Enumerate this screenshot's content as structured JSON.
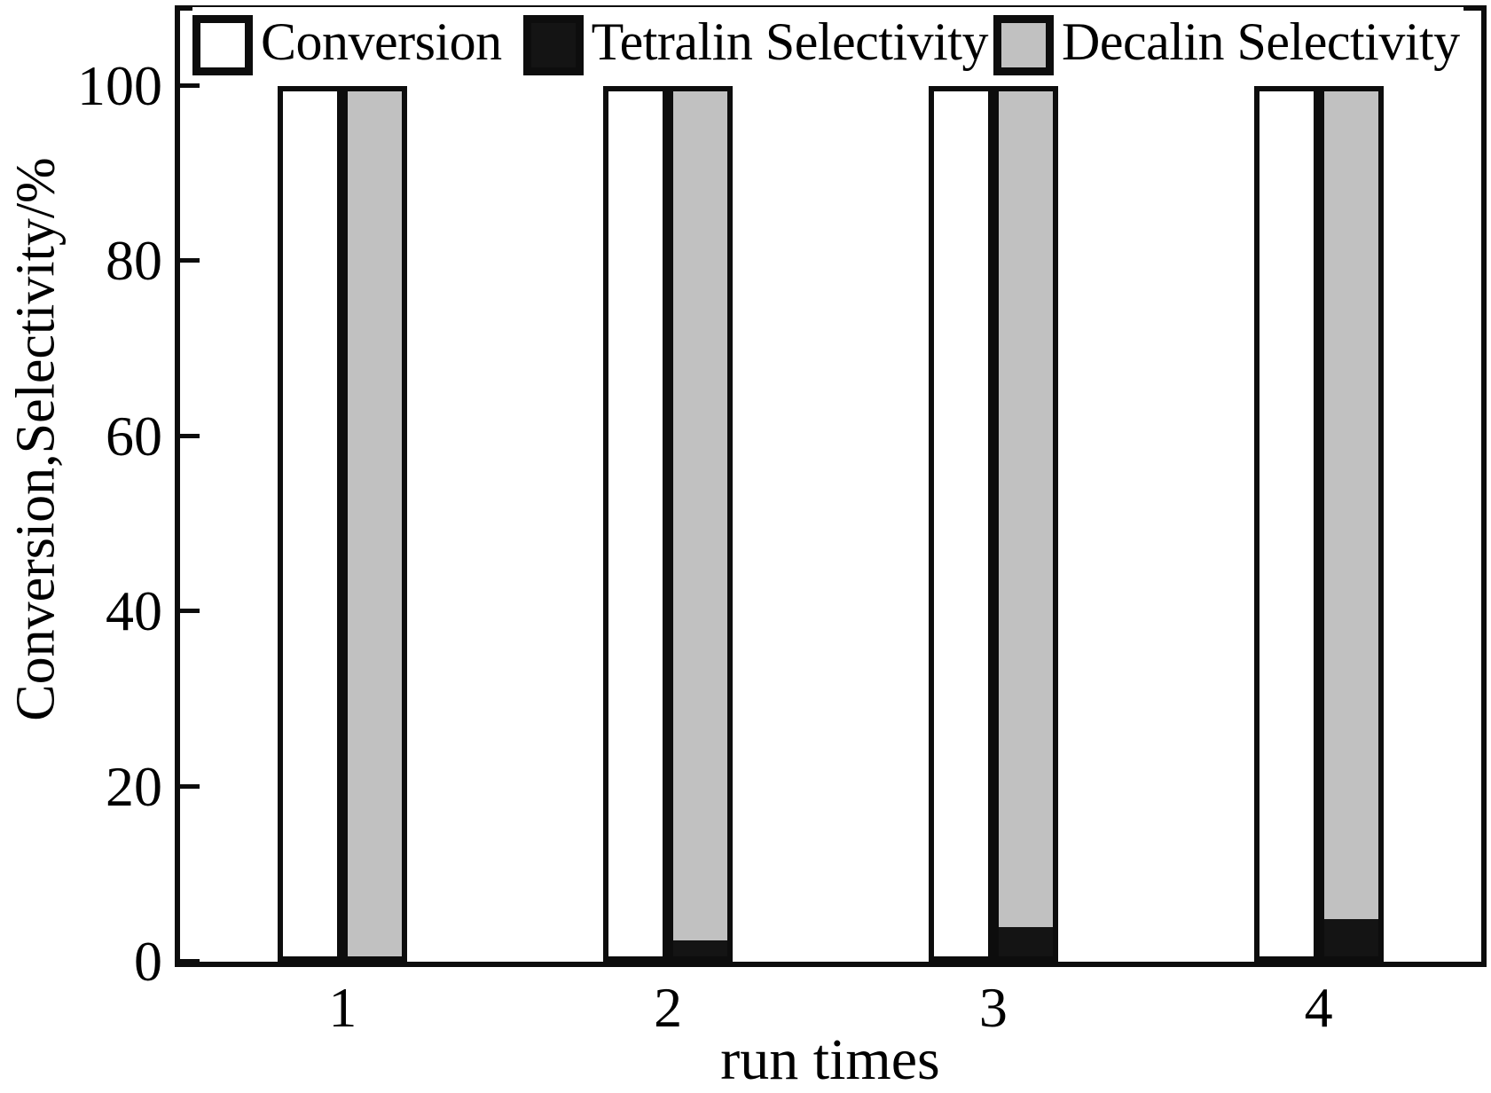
{
  "chart_data": {
    "type": "bar",
    "xlabel": "run times",
    "ylabel": "Conversion,Selectivity/%",
    "categories": [
      "1",
      "2",
      "3",
      "4"
    ],
    "series": [
      {
        "name": "Conversion",
        "color": "#ffffff",
        "mode": "grouped",
        "values": [
          100,
          100,
          100,
          100
        ]
      },
      {
        "name": "Tetralin Selectivity",
        "color": "#141414",
        "mode": "stacked",
        "values": [
          0,
          2,
          3.5,
          4.5
        ]
      },
      {
        "name": "Decalin Selectivity",
        "color": "#c1c1c1",
        "mode": "stacked",
        "values": [
          100,
          98,
          96.5,
          95.5
        ]
      }
    ],
    "ylim": [
      0,
      100
    ],
    "yticks": [
      0,
      20,
      40,
      60,
      80,
      100
    ],
    "grid": false,
    "legend_position": "top-inside",
    "bar_outline_color": "#0d0d0d",
    "frame": true
  }
}
